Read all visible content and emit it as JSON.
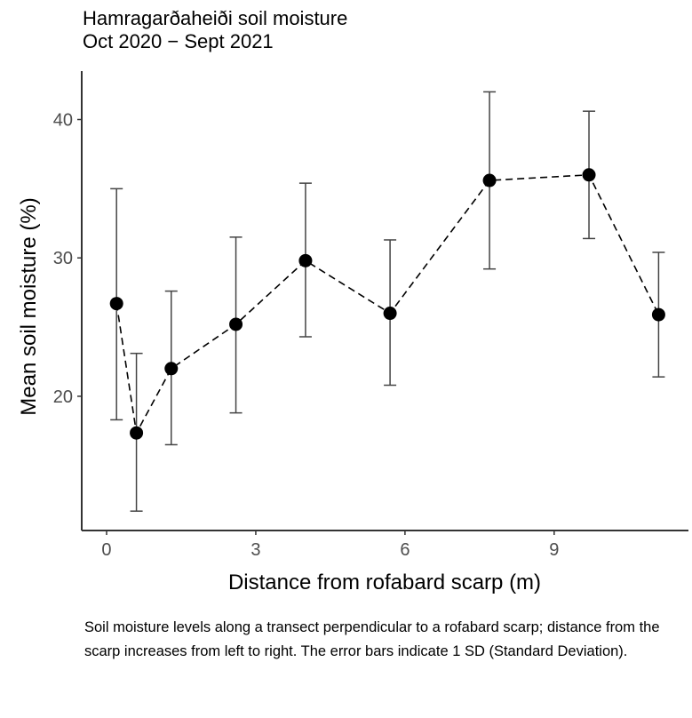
{
  "chart_data": {
    "type": "scatter",
    "title": "Hamragarðaheiði soil moisture",
    "subtitle": "Oct 2020 − Sept 2021",
    "xlabel": "Distance from rofabard scarp (m)",
    "ylabel": "Mean soil moisture (%)",
    "xlim": [
      -0.5,
      11.7
    ],
    "ylim": [
      10.3,
      43.5
    ],
    "xticks": [
      0,
      3,
      6,
      9
    ],
    "yticks": [
      20,
      30,
      40
    ],
    "grid": false,
    "line_style": "dashed",
    "marker_color": "#000000",
    "error_bars": "1 SD",
    "points": [
      {
        "x": 0.2,
        "y": 26.7,
        "ymin": 18.3,
        "ymax": 35.0
      },
      {
        "x": 0.6,
        "y": 17.35,
        "ymin": 11.7,
        "ymax": 23.1
      },
      {
        "x": 1.3,
        "y": 22.0,
        "ymin": 16.5,
        "ymax": 27.6
      },
      {
        "x": 2.6,
        "y": 25.2,
        "ymin": 18.8,
        "ymax": 31.5
      },
      {
        "x": 4.0,
        "y": 29.8,
        "ymin": 24.3,
        "ymax": 35.4
      },
      {
        "x": 5.7,
        "y": 26.0,
        "ymin": 20.8,
        "ymax": 31.3
      },
      {
        "x": 7.7,
        "y": 35.6,
        "ymin": 29.2,
        "ymax": 42.0
      },
      {
        "x": 9.7,
        "y": 36.0,
        "ymin": 31.4,
        "ymax": 40.6
      },
      {
        "x": 11.1,
        "y": 25.9,
        "ymin": 21.4,
        "ymax": 30.4
      }
    ]
  },
  "caption": "Soil moisture levels along a transect perpendicular to a rofabard scarp; distance from the scarp increases from left to right. The error bars indicate 1 SD (Standard Deviation)."
}
